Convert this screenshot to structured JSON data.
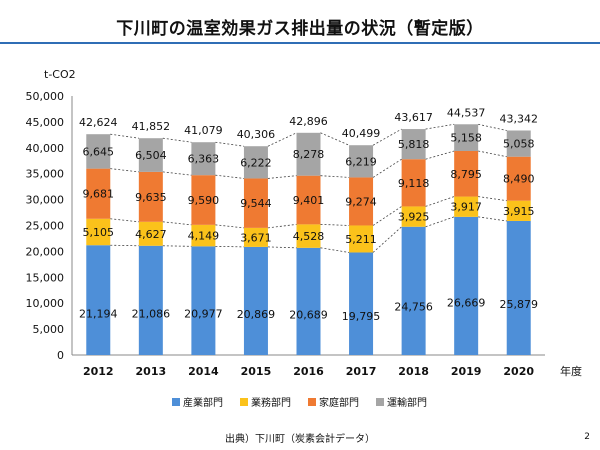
{
  "page": {
    "title": "下川町の温室効果ガス排出量の状況（暫定版）",
    "source": "出典）下川町（炭素会計データ）",
    "page_number": "2"
  },
  "chart_data": {
    "type": "bar",
    "stacked": true,
    "title": "",
    "xlabel": "年度",
    "ylabel": "t-CO2",
    "ylim": [
      0,
      50000
    ],
    "yticks": [
      0,
      5000,
      10000,
      15000,
      20000,
      25000,
      30000,
      35000,
      40000,
      45000,
      50000
    ],
    "ytick_labels": [
      "0",
      "5,000",
      "10,000",
      "15,000",
      "20,000",
      "25,000",
      "30,000",
      "35,000",
      "40,000",
      "45,000",
      "50,000"
    ],
    "grid": false,
    "legend_position": "bottom",
    "categories": [
      "2012",
      "2013",
      "2014",
      "2015",
      "2016",
      "2017",
      "2018",
      "2019",
      "2020"
    ],
    "series": [
      {
        "name": "産業部門",
        "color": "#4e8fd8",
        "values": [
          21194,
          21086,
          20977,
          20869,
          20689,
          19795,
          24756,
          26669,
          25879
        ],
        "labels": [
          "21,194",
          "21,086",
          "20,977",
          "20,869",
          "20,689",
          "19,795",
          "24,756",
          "26,669",
          "25,879"
        ]
      },
      {
        "name": "業務部門",
        "color": "#fbc21b",
        "values": [
          5105,
          4627,
          4149,
          3671,
          4528,
          5211,
          3925,
          3917,
          3915
        ],
        "labels": [
          "5,105",
          "4,627",
          "4,149",
          "3,671",
          "4,528",
          "5,211",
          "3,925",
          "3,917",
          "3,915"
        ]
      },
      {
        "name": "家庭部門",
        "color": "#ef7a32",
        "values": [
          9681,
          9635,
          9590,
          9544,
          9401,
          9274,
          9118,
          8795,
          8490
        ],
        "labels": [
          "9,681",
          "9,635",
          "9,590",
          "9,544",
          "9,401",
          "9,274",
          "9,118",
          "8,795",
          "8,490"
        ]
      },
      {
        "name": "運輸部門",
        "color": "#a5a5a5",
        "values": [
          6645,
          6504,
          6363,
          6222,
          8278,
          6219,
          5818,
          5158,
          5058
        ],
        "labels": [
          "6,645",
          "6,504",
          "6,363",
          "6,222",
          "8,278",
          "6,219",
          "5,818",
          "5,158",
          "5,058"
        ]
      }
    ],
    "totals": [
      42624,
      41852,
      41079,
      40306,
      42896,
      40499,
      43617,
      44537,
      43342
    ],
    "total_labels": [
      "42,624",
      "41,852",
      "41,079",
      "40,306",
      "42,896",
      "40,499",
      "43,617",
      "44,537",
      "43,342"
    ],
    "connector_lines": "dashed"
  }
}
